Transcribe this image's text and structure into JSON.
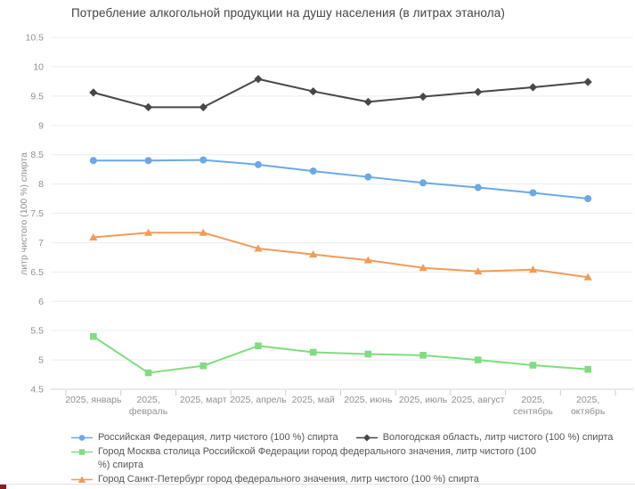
{
  "page": {
    "bottom_divider_color": "#dde4ec",
    "corner_fragment_color": "#8b1d1d"
  },
  "chart_data": {
    "type": "line",
    "title": "Потребление алкогольной продукции на душу населения (в литрах этанола)",
    "xlabel": "",
    "ylabel": "литр чистого (100 %) спирта",
    "ylim": [
      4.5,
      10.5
    ],
    "ytick_step": 0.5,
    "grid": true,
    "legend_position": "bottom",
    "categories": [
      "2025, январь",
      "2025, февраль",
      "2025, март",
      "2025, апрель",
      "2025, май",
      "2025, июнь",
      "2025, июль",
      "2025, август",
      "2025, сентябрь",
      "2025, октябрь"
    ],
    "xtick_lines": [
      [
        "2025, январь"
      ],
      [
        "2025,",
        "февраль"
      ],
      [
        "2025, март"
      ],
      [
        "2025, апрель"
      ],
      [
        "2025, май"
      ],
      [
        "2025, июнь"
      ],
      [
        "2025, июль"
      ],
      [
        "2025, август"
      ],
      [
        "2025,",
        "сентябрь"
      ],
      [
        "2025,",
        "октябрь"
      ]
    ],
    "series": [
      {
        "name": "Российская Федерация, литр чистого (100 %) спирта",
        "marker": "circle",
        "color": "#6aa9e8",
        "values": [
          8.4,
          8.4,
          8.41,
          8.33,
          8.22,
          8.12,
          8.02,
          7.94,
          7.85,
          7.75
        ]
      },
      {
        "name": "Вологодская область, литр чистого (100 %) спирта",
        "marker": "diamond",
        "color": "#474747",
        "values": [
          9.56,
          9.31,
          9.31,
          9.79,
          9.58,
          9.4,
          9.49,
          9.57,
          9.65,
          9.74
        ]
      },
      {
        "name": "Город Москва столица Российской Федерации город федерального значения, литр чистого (100 %) спирта",
        "label_lines": [
          "Город Москва столица Российской Федерации город федерального значения, литр чистого (100",
          "%) спирта"
        ],
        "marker": "square",
        "color": "#7fdd7f",
        "values": [
          5.4,
          4.78,
          4.9,
          5.24,
          5.13,
          5.1,
          5.08,
          5.0,
          4.91,
          4.84
        ]
      },
      {
        "name": "Город Санкт-Петербург город федерального значения, литр чистого (100 %) спирта",
        "marker": "triangle",
        "color": "#f29b58",
        "values": [
          7.09,
          7.17,
          7.17,
          6.9,
          6.8,
          6.7,
          6.57,
          6.51,
          6.54,
          6.41
        ]
      }
    ],
    "axis_colors": {
      "grid": "#ededed",
      "axis_line": "#d4d4d4",
      "tick": "#c9ced4",
      "label": "#909090"
    }
  }
}
